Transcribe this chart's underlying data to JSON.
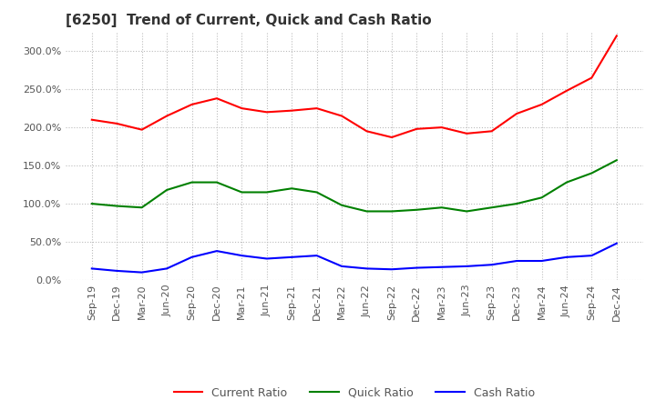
{
  "title": "[6250]  Trend of Current, Quick and Cash Ratio",
  "x_labels": [
    "Sep-19",
    "Dec-19",
    "Mar-20",
    "Jun-20",
    "Sep-20",
    "Dec-20",
    "Mar-21",
    "Jun-21",
    "Sep-21",
    "Dec-21",
    "Mar-22",
    "Jun-22",
    "Sep-22",
    "Dec-22",
    "Mar-23",
    "Jun-23",
    "Sep-23",
    "Dec-23",
    "Mar-24",
    "Jun-24",
    "Sep-24",
    "Dec-24"
  ],
  "current_ratio": [
    210,
    205,
    197,
    215,
    230,
    238,
    225,
    220,
    222,
    225,
    215,
    195,
    187,
    198,
    200,
    192,
    195,
    218,
    230,
    248,
    265,
    320
  ],
  "quick_ratio": [
    100,
    97,
    95,
    118,
    128,
    128,
    115,
    115,
    120,
    115,
    98,
    90,
    90,
    92,
    95,
    90,
    95,
    100,
    108,
    128,
    140,
    157
  ],
  "cash_ratio": [
    15,
    12,
    10,
    15,
    30,
    38,
    32,
    28,
    30,
    32,
    18,
    15,
    14,
    16,
    17,
    18,
    20,
    25,
    25,
    30,
    32,
    48
  ],
  "ylim": [
    0,
    325
  ],
  "yticks": [
    0,
    50,
    100,
    150,
    200,
    250,
    300
  ],
  "current_color": "#ff0000",
  "quick_color": "#008000",
  "cash_color": "#0000ff",
  "background_color": "#ffffff",
  "grid_color": "#bbbbbb",
  "title_fontsize": 11,
  "tick_fontsize": 8,
  "legend_labels": [
    "Current Ratio",
    "Quick Ratio",
    "Cash Ratio"
  ]
}
